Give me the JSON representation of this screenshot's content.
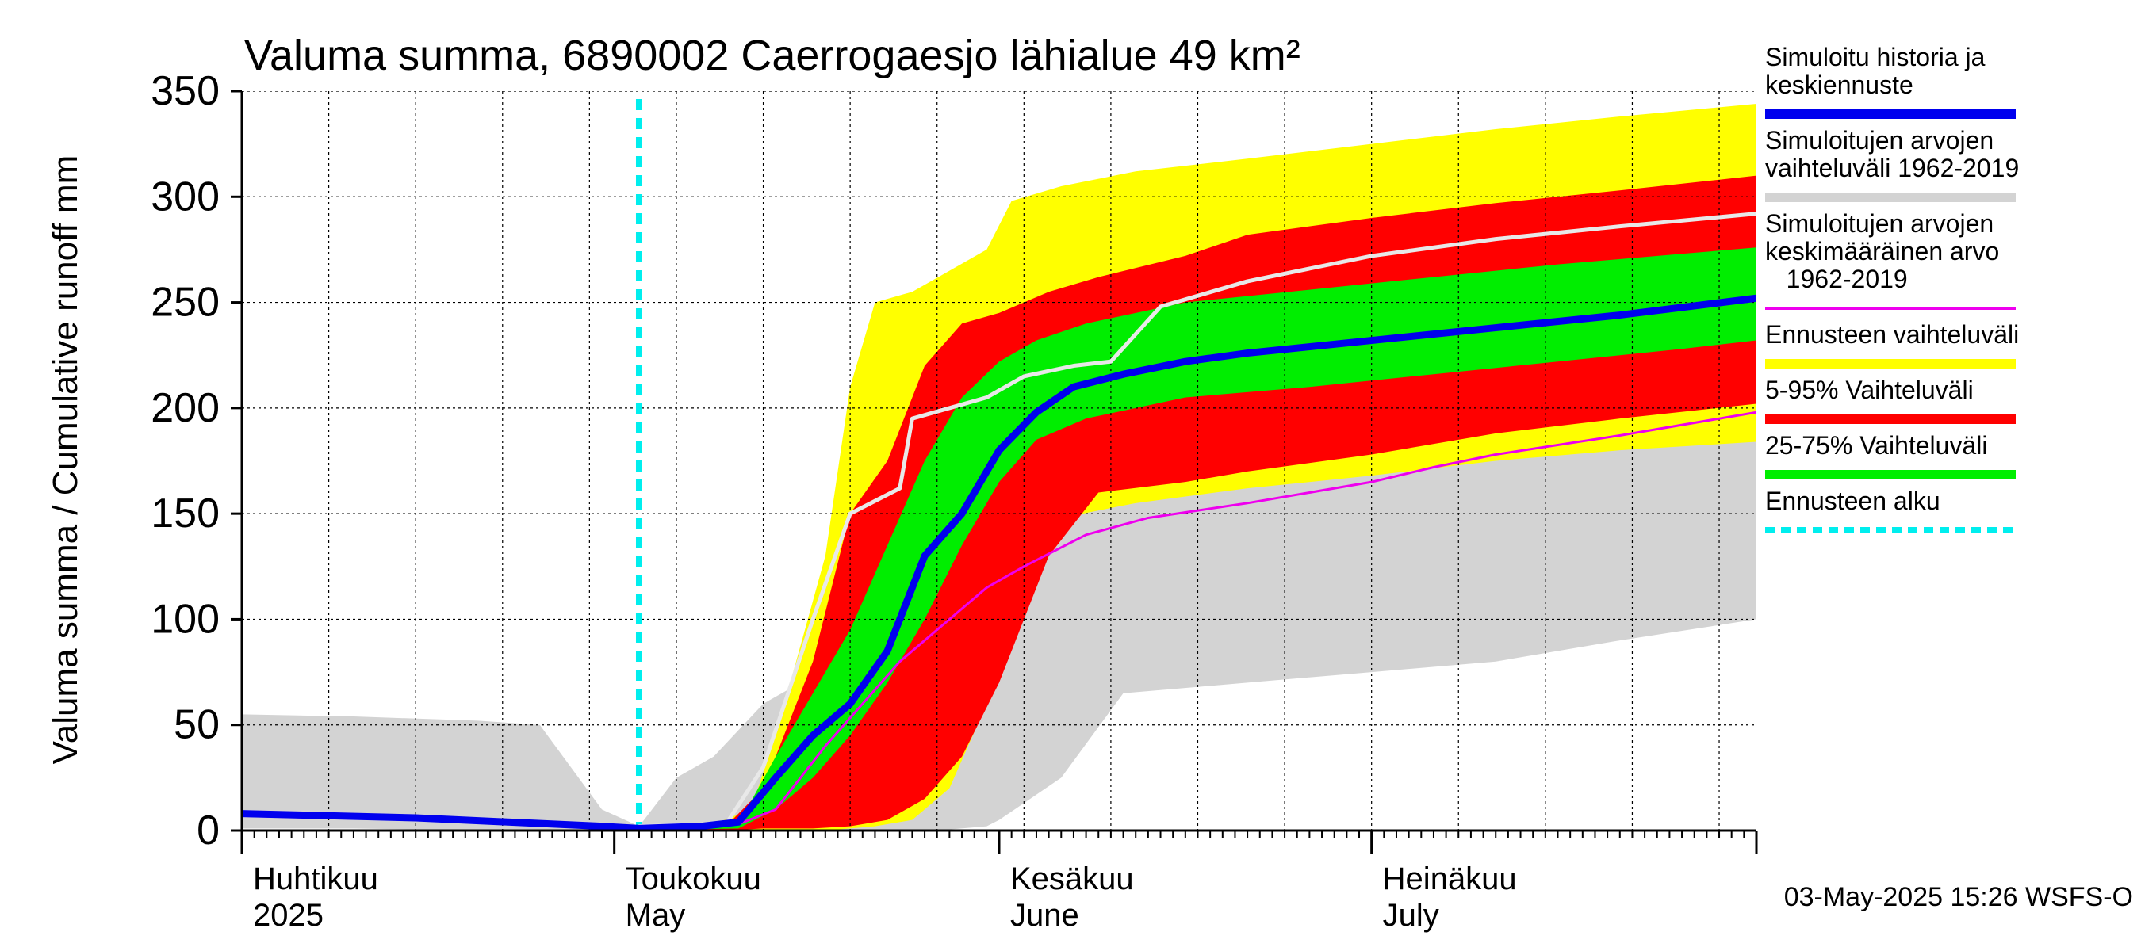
{
  "chart_data": {
    "type": "area",
    "title": "Valuma summa, 6890002 Caerrogaesjo lähialue 49 km²",
    "ylabel": "Valuma summa / Cumulative runoff    mm",
    "ylim": [
      0,
      350
    ],
    "yticks": [
      0,
      50,
      100,
      150,
      200,
      250,
      300,
      350
    ],
    "xlim": [
      "2025-04-01",
      "2025-08-01"
    ],
    "grid": true,
    "month_labels": [
      {
        "fi": "Huhtikuu",
        "en": "2025",
        "start": "2025-04-01"
      },
      {
        "fi": "Toukokuu",
        "en": "May",
        "start": "2025-05-01"
      },
      {
        "fi": "Kesäkuu",
        "en": "June",
        "start": "2025-06-01"
      },
      {
        "fi": "Heinäkuu",
        "en": "July",
        "start": "2025-07-01"
      }
    ],
    "forecast_start": "2025-05-03",
    "footer": "03-May-2025 15:26 WSFS-O",
    "legend": [
      {
        "label": "Simuloitu historia ja\nkeskiennuste",
        "color": "#0000ee",
        "style": "thick"
      },
      {
        "label": "Simuloitujen arvojen\nvaihteluväli 1962-2019",
        "color": "#d3d3d3",
        "style": "thick"
      },
      {
        "label": "Simuloitujen arvojen\nkeskimääräinen arvo\n   1962-2019",
        "color": "#ee00ee",
        "style": "thin"
      },
      {
        "label": "Ennusteen vaihteluväli",
        "color": "#ffff00",
        "style": "thick"
      },
      {
        "label": "5-95% Vaihteluväli",
        "color": "#ff0000",
        "style": "thick"
      },
      {
        "label": "25-75% Vaihteluväli",
        "color": "#00ee00",
        "style": "thick"
      },
      {
        "label": "Ennusteen alku",
        "color": "#00eeee",
        "style": "dashed"
      }
    ],
    "series": [
      {
        "name": "Simuloitujen arvojen vaihteluväli 1962-2019",
        "kind": "band",
        "color": "#d3d3d3",
        "x": [
          "2025-04-01",
          "2025-04-10",
          "2025-04-20",
          "2025-04-25",
          "2025-04-30",
          "2025-05-03",
          "2025-05-06",
          "2025-05-09",
          "2025-05-13",
          "2025-05-16",
          "2025-05-19",
          "2025-05-21",
          "2025-05-24",
          "2025-05-27",
          "2025-05-31",
          "2025-06-01",
          "2025-06-06",
          "2025-06-11",
          "2025-06-21",
          "2025-07-01",
          "2025-07-11",
          "2025-07-21",
          "2025-08-01"
        ],
        "upper": [
          55,
          54,
          52,
          50,
          10,
          2,
          25,
          35,
          60,
          70,
          85,
          110,
          130,
          145,
          165,
          200,
          215,
          230,
          240,
          260,
          275,
          282,
          290
        ],
        "lower": [
          1,
          1,
          0,
          0,
          0,
          0,
          0,
          0,
          0,
          0,
          0,
          0,
          0,
          0,
          2,
          5,
          25,
          65,
          70,
          75,
          80,
          90,
          100
        ]
      },
      {
        "name": "Ennusteen vaihteluväli",
        "kind": "band",
        "color": "#ffff00",
        "x": [
          "2025-05-03",
          "2025-05-09",
          "2025-05-12",
          "2025-05-14",
          "2025-05-18",
          "2025-05-20",
          "2025-05-22",
          "2025-05-25",
          "2025-05-28",
          "2025-05-31",
          "2025-06-02",
          "2025-06-06",
          "2025-06-12",
          "2025-06-21",
          "2025-07-01",
          "2025-07-11",
          "2025-07-21",
          "2025-08-01"
        ],
        "upper": [
          1,
          3,
          10,
          45,
          130,
          210,
          250,
          255,
          265,
          275,
          298,
          305,
          312,
          318,
          325,
          332,
          338,
          344
        ],
        "lower": [
          0,
          0,
          0,
          0,
          0,
          1,
          2,
          5,
          20,
          60,
          120,
          148,
          155,
          162,
          168,
          175,
          180,
          184
        ]
      },
      {
        "name": "5-95% Vaihteluväli",
        "kind": "band",
        "color": "#ff0000",
        "x": [
          "2025-05-03",
          "2025-05-10",
          "2025-05-13",
          "2025-05-17",
          "2025-05-20",
          "2025-05-23",
          "2025-05-26",
          "2025-05-29",
          "2025-06-01",
          "2025-06-05",
          "2025-06-09",
          "2025-06-16",
          "2025-06-21",
          "2025-07-01",
          "2025-07-11",
          "2025-07-21",
          "2025-08-01"
        ],
        "upper": [
          1,
          2,
          20,
          80,
          150,
          175,
          220,
          240,
          245,
          255,
          262,
          272,
          282,
          290,
          297,
          303,
          310
        ],
        "lower": [
          0,
          0,
          1,
          1,
          2,
          5,
          15,
          35,
          70,
          130,
          160,
          165,
          170,
          178,
          188,
          195,
          202
        ]
      },
      {
        "name": "25-75% Vaihteluväli",
        "kind": "band",
        "color": "#00ee00",
        "x": [
          "2025-05-03",
          "2025-05-11",
          "2025-05-14",
          "2025-05-17",
          "2025-05-20",
          "2025-05-23",
          "2025-05-26",
          "2025-05-29",
          "2025-06-01",
          "2025-06-04",
          "2025-06-08",
          "2025-06-16",
          "2025-06-26",
          "2025-07-06",
          "2025-07-16",
          "2025-07-26",
          "2025-08-01"
        ],
        "upper": [
          1,
          3,
          35,
          65,
          95,
          135,
          175,
          205,
          222,
          232,
          240,
          250,
          256,
          262,
          268,
          273,
          276
        ],
        "lower": [
          0,
          1,
          10,
          25,
          45,
          70,
          100,
          135,
          165,
          185,
          195,
          205,
          210,
          216,
          222,
          228,
          232
        ]
      },
      {
        "name": "Simuloitujen arvojen keskimääräinen arvo 1962-2019",
        "kind": "line",
        "color": "#ee00ee",
        "width": 3,
        "x": [
          "2025-04-01",
          "2025-04-15",
          "2025-04-30",
          "2025-05-03",
          "2025-05-08",
          "2025-05-11",
          "2025-05-14",
          "2025-05-18",
          "2025-05-21",
          "2025-05-24",
          "2025-05-27",
          "2025-05-31",
          "2025-06-03",
          "2025-06-08",
          "2025-06-13",
          "2025-06-21",
          "2025-07-01",
          "2025-07-06",
          "2025-07-11",
          "2025-07-21",
          "2025-08-01"
        ],
        "y": [
          7,
          5,
          2,
          1,
          2,
          3,
          10,
          40,
          60,
          80,
          95,
          115,
          125,
          140,
          148,
          155,
          165,
          172,
          178,
          187,
          198
        ]
      },
      {
        "name": "Simuloitu historia ja keskiennuste (simulated history)",
        "kind": "line",
        "color": "#e8e8e8",
        "width": 5,
        "x": [
          "2025-05-03",
          "2025-05-10",
          "2025-05-13",
          "2025-05-17",
          "2025-05-20",
          "2025-05-24",
          "2025-05-25",
          "2025-05-31",
          "2025-06-03",
          "2025-06-07",
          "2025-06-10",
          "2025-06-14",
          "2025-06-21",
          "2025-07-01",
          "2025-07-11",
          "2025-07-21",
          "2025-08-01"
        ],
        "y": [
          2,
          3,
          30,
          100,
          150,
          162,
          195,
          205,
          215,
          220,
          222,
          248,
          260,
          272,
          280,
          286,
          292
        ]
      },
      {
        "name": "Simuloitu historia ja keskiennuste",
        "kind": "line",
        "color": "#0000ee",
        "width": 9,
        "x": [
          "2025-04-01",
          "2025-04-15",
          "2025-04-30",
          "2025-05-03",
          "2025-05-08",
          "2025-05-11",
          "2025-05-14",
          "2025-05-17",
          "2025-05-20",
          "2025-05-23",
          "2025-05-26",
          "2025-05-29",
          "2025-06-01",
          "2025-06-04",
          "2025-06-07",
          "2025-06-11",
          "2025-06-16",
          "2025-06-21",
          "2025-07-01",
          "2025-07-11",
          "2025-07-21",
          "2025-08-01"
        ],
        "y": [
          8,
          6,
          2,
          1,
          2,
          4,
          25,
          45,
          60,
          85,
          130,
          150,
          180,
          198,
          210,
          216,
          222,
          226,
          232,
          238,
          244,
          252
        ]
      }
    ]
  }
}
